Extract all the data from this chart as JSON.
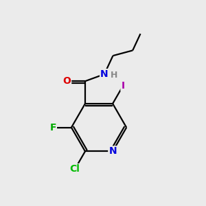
{
  "bg_color": "#ebebeb",
  "atom_colors": {
    "C": "#000000",
    "N_ring": "#0000dd",
    "N_amide": "#0000dd",
    "H": "#888888",
    "O": "#dd0000",
    "F": "#00aa00",
    "Cl": "#00bb00",
    "I": "#aa00aa"
  },
  "bond_lw": 1.6,
  "font_size": 10
}
